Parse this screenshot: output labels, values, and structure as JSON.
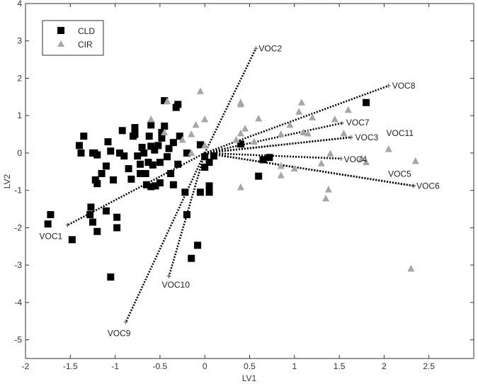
{
  "chart_data": {
    "type": "scatter",
    "title": "",
    "xlabel": "LV1",
    "ylabel": "LV2",
    "xlim": [
      -2,
      3
    ],
    "ylim": [
      -5.5,
      4
    ],
    "xticks": [
      -2,
      -1.5,
      -1,
      -0.5,
      0,
      0.5,
      1,
      1.5,
      2,
      2.5
    ],
    "yticks": [
      -5,
      -4,
      -3,
      -2,
      -1,
      0,
      1,
      2,
      3,
      4
    ],
    "grid": false,
    "legend": {
      "position": "top-left"
    },
    "series": [
      {
        "name": "CLD",
        "marker": "square",
        "color": "#000000",
        "points": [
          [
            -1.75,
            -1.9
          ],
          [
            -1.72,
            -1.65
          ],
          [
            -1.48,
            -2.32
          ],
          [
            -1.4,
            0.2
          ],
          [
            -1.38,
            0.0
          ],
          [
            -1.35,
            0.45
          ],
          [
            -1.28,
            -1.65
          ],
          [
            -1.27,
            -1.45
          ],
          [
            -1.25,
            -1.85
          ],
          [
            -1.25,
            0.0
          ],
          [
            -1.23,
            0.0
          ],
          [
            -1.22,
            -0.72
          ],
          [
            -1.2,
            -2.1
          ],
          [
            -1.2,
            -0.82
          ],
          [
            -1.2,
            -0.05
          ],
          [
            -1.15,
            -0.55
          ],
          [
            -1.1,
            -1.55
          ],
          [
            -1.1,
            -0.35
          ],
          [
            -1.08,
            0.3
          ],
          [
            -1.05,
            0.05
          ],
          [
            -1.02,
            -0.72
          ],
          [
            -0.98,
            -2.0
          ],
          [
            -0.98,
            -1.72
          ],
          [
            -1.05,
            -3.32
          ],
          [
            -0.95,
            0.0
          ],
          [
            -0.92,
            0.6
          ],
          [
            -0.9,
            -0.08
          ],
          [
            -0.85,
            -0.42
          ],
          [
            -0.82,
            -0.7
          ],
          [
            -0.8,
            0.45
          ],
          [
            -0.78,
            0.68
          ],
          [
            -0.78,
            0.5
          ],
          [
            -0.75,
            -0.08
          ],
          [
            -0.72,
            -0.3
          ],
          [
            -0.72,
            -0.55
          ],
          [
            -0.7,
            0.15
          ],
          [
            -0.68,
            -0.0
          ],
          [
            -0.66,
            -0.55
          ],
          [
            -0.65,
            -0.85
          ],
          [
            -0.63,
            -0.25
          ],
          [
            -0.62,
            0.45
          ],
          [
            -0.6,
            0.75
          ],
          [
            -0.6,
            0.18
          ],
          [
            -0.6,
            -0.9
          ],
          [
            -0.58,
            -0.32
          ],
          [
            -0.56,
            0.08
          ],
          [
            -0.55,
            -0.88
          ],
          [
            -0.52,
            0.2
          ],
          [
            -0.5,
            -0.8
          ],
          [
            -0.5,
            -0.25
          ],
          [
            -0.48,
            0.55
          ],
          [
            -0.48,
            0.4
          ],
          [
            -0.45,
            0.72
          ],
          [
            -0.45,
            1.4
          ],
          [
            -0.42,
            -0.1
          ],
          [
            -0.4,
            0.12
          ],
          [
            -0.38,
            -0.55
          ],
          [
            -0.35,
            0.28
          ],
          [
            -0.35,
            -0.85
          ],
          [
            -0.32,
            1.22
          ],
          [
            -0.3,
            1.3
          ],
          [
            -0.3,
            -0.3
          ],
          [
            -0.28,
            0.45
          ],
          [
            -0.22,
            -1.05
          ],
          [
            -0.2,
            0.0
          ],
          [
            -0.2,
            -1.65
          ],
          [
            -0.15,
            -2.82
          ],
          [
            -0.08,
            -2.47
          ],
          [
            -0.05,
            -1.05
          ],
          [
            -0.05,
            0.22
          ],
          [
            0.0,
            -0.1
          ],
          [
            0.0,
            -0.38
          ],
          [
            0.05,
            -0.25
          ],
          [
            0.05,
            -0.88
          ],
          [
            0.05,
            -1.05
          ],
          [
            0.1,
            -0.08
          ],
          [
            0.4,
            0.24
          ],
          [
            0.6,
            -0.62
          ],
          [
            0.65,
            -0.18
          ],
          [
            0.72,
            -0.12
          ],
          [
            1.8,
            1.35
          ]
        ]
      },
      {
        "name": "CIR",
        "marker": "triangle",
        "color": "#a6a6a6",
        "points": [
          [
            -0.6,
            0.9
          ],
          [
            -0.45,
            0.55
          ],
          [
            -0.42,
            1.38
          ],
          [
            -0.25,
            0.35
          ],
          [
            -0.15,
            0.0
          ],
          [
            -0.15,
            0.5
          ],
          [
            -0.1,
            0.75
          ],
          [
            -0.05,
            1.65
          ],
          [
            0.0,
            0.9
          ],
          [
            0.0,
            0.2
          ],
          [
            0.35,
            0.35
          ],
          [
            0.4,
            1.35
          ],
          [
            0.4,
            1.3
          ],
          [
            0.4,
            0.52
          ],
          [
            0.4,
            -0.92
          ],
          [
            0.45,
            0.65
          ],
          [
            0.55,
            0.3
          ],
          [
            0.6,
            0.92
          ],
          [
            0.85,
            0.5
          ],
          [
            0.85,
            -0.35
          ],
          [
            0.85,
            -0.6
          ],
          [
            0.95,
            0.75
          ],
          [
            1.0,
            -0.42
          ],
          [
            1.05,
            1.1
          ],
          [
            1.08,
            1.35
          ],
          [
            1.1,
            0.55
          ],
          [
            1.15,
            0.52
          ],
          [
            1.2,
            0.95
          ],
          [
            1.3,
            -0.28
          ],
          [
            1.35,
            -1.22
          ],
          [
            1.38,
            -0.98
          ],
          [
            1.4,
            -0.02
          ],
          [
            1.45,
            0.9
          ],
          [
            1.55,
            0.52
          ],
          [
            1.6,
            1.15
          ],
          [
            1.75,
            -0.15
          ],
          [
            1.8,
            -0.25
          ],
          [
            2.05,
            0.1
          ],
          [
            2.3,
            -3.1
          ],
          [
            2.35,
            -0.22
          ]
        ]
      }
    ],
    "loadings": [
      {
        "label": "VOC1",
        "x": -1.53,
        "y": -1.93
      },
      {
        "label": "VOC2",
        "x": 0.57,
        "y": 2.8
      },
      {
        "label": "VOC3",
        "x": 1.63,
        "y": 0.42
      },
      {
        "label": "VOC4",
        "x": 1.52,
        "y": -0.15
      },
      {
        "label": "VOC5",
        "x": 2.33,
        "y": -0.88
      },
      {
        "label": "VOC6",
        "x": 2.33,
        "y": -0.88
      },
      {
        "label": "VOC7",
        "x": 1.53,
        "y": 0.8
      },
      {
        "label": "VOC8",
        "x": 2.05,
        "y": 1.8
      },
      {
        "label": "VOC9",
        "x": -0.88,
        "y": -4.52
      },
      {
        "label": "VOC10",
        "x": -0.4,
        "y": -3.3
      },
      {
        "label": "VOC11",
        "x": 1.63,
        "y": 0.42
      }
    ]
  }
}
